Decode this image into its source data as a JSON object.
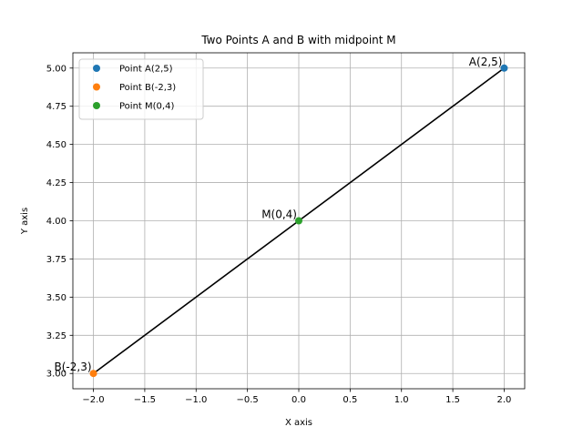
{
  "chart_data": {
    "type": "scatter",
    "title": "Two Points A and B with midpoint M",
    "xlabel": "X axis",
    "ylabel": "Y axis",
    "xlim": [
      -2.2,
      2.2
    ],
    "ylim": [
      2.9,
      5.1
    ],
    "xticks": [
      -2.0,
      -1.5,
      -1.0,
      -0.5,
      0.0,
      0.5,
      1.0,
      1.5,
      2.0
    ],
    "xtick_labels": [
      "−2.0",
      "−1.5",
      "−1.0",
      "−0.5",
      "0.0",
      "0.5",
      "1.0",
      "1.5",
      "2.0"
    ],
    "yticks": [
      3.0,
      3.25,
      3.5,
      3.75,
      4.0,
      4.25,
      4.5,
      4.75,
      5.0
    ],
    "ytick_labels": [
      "3.00",
      "3.25",
      "3.50",
      "3.75",
      "4.00",
      "4.25",
      "4.50",
      "4.75",
      "5.00"
    ],
    "grid": true,
    "legend_position": "top-left",
    "series": [
      {
        "name": "Point A(2,5)",
        "x": [
          2
        ],
        "y": [
          5
        ],
        "color": "#1f77b4",
        "label": "A(2,5)"
      },
      {
        "name": "Point B(-2,3)",
        "x": [
          -2
        ],
        "y": [
          3
        ],
        "color": "#ff7f0e",
        "label": "B(-2,3)"
      },
      {
        "name": "Point M(0,4)",
        "x": [
          0
        ],
        "y": [
          4
        ],
        "color": "#2ca02c",
        "label": "M(0,4)"
      }
    ],
    "line_segment": {
      "x": [
        -2,
        2
      ],
      "y": [
        3,
        5
      ],
      "color": "#000000"
    }
  }
}
